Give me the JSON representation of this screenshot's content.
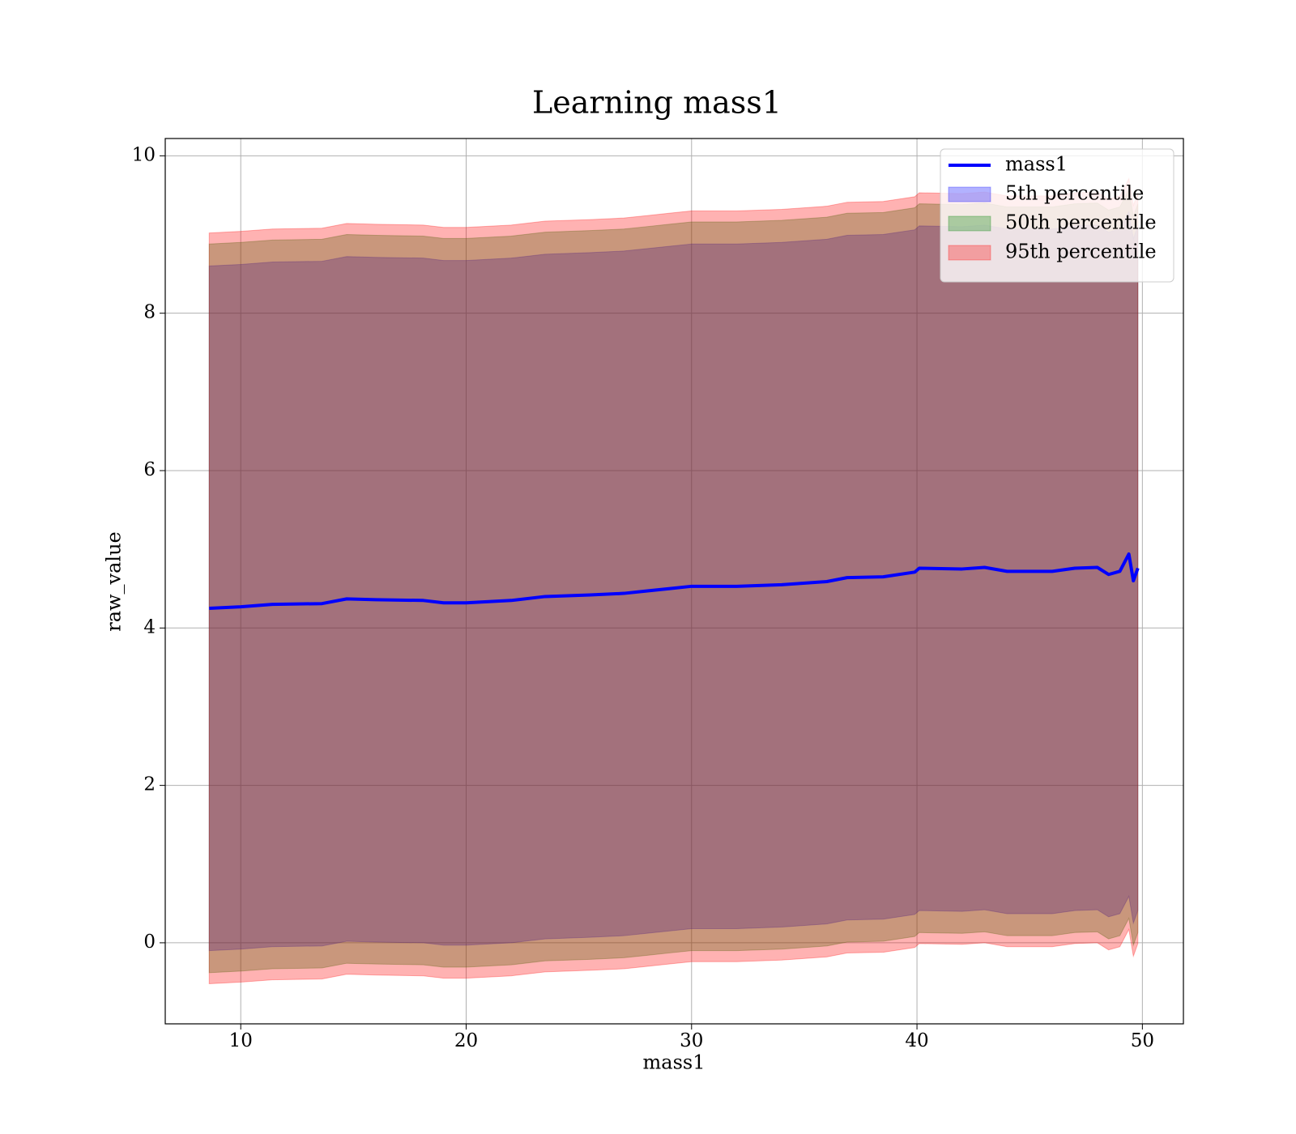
{
  "chart_data": {
    "type": "line",
    "title": "Learning mass1",
    "x_label": "mass1",
    "y_label": "raw_value",
    "x": [
      8.6,
      10,
      11.4,
      13.6,
      14.7,
      16,
      18.1,
      19,
      20,
      22,
      23.5,
      25.5,
      27,
      28,
      29,
      30,
      32,
      34,
      36,
      36.9,
      38.5,
      39.9,
      40.1,
      42,
      43,
      44,
      46,
      47,
      48,
      48.5,
      49,
      49.4,
      49.6,
      49.8
    ],
    "series": [
      {
        "name": "mass1",
        "color": "#0000ff",
        "values": [
          4.25,
          4.27,
          4.3,
          4.31,
          4.37,
          4.36,
          4.35,
          4.32,
          4.32,
          4.35,
          4.4,
          4.42,
          4.44,
          4.47,
          4.5,
          4.53,
          4.53,
          4.55,
          4.59,
          4.64,
          4.65,
          4.71,
          4.76,
          4.75,
          4.77,
          4.72,
          4.72,
          4.76,
          4.77,
          4.68,
          4.72,
          4.94,
          4.6,
          4.76
        ]
      }
    ],
    "bands": [
      {
        "name": "5th percentile",
        "color": "#0000ff",
        "lower": [
          -0.1,
          -0.08,
          -0.05,
          -0.04,
          0.02,
          0.01,
          0.0,
          -0.03,
          -0.03,
          0.0,
          0.05,
          0.07,
          0.09,
          0.12,
          0.15,
          0.18,
          0.18,
          0.2,
          0.24,
          0.29,
          0.3,
          0.36,
          0.41,
          0.4,
          0.42,
          0.37,
          0.37,
          0.41,
          0.42,
          0.33,
          0.37,
          0.59,
          0.25,
          0.41
        ],
        "upper": [
          8.6,
          8.62,
          8.65,
          8.66,
          8.72,
          8.71,
          8.7,
          8.67,
          8.67,
          8.7,
          8.75,
          8.77,
          8.79,
          8.82,
          8.85,
          8.88,
          8.88,
          8.9,
          8.94,
          8.99,
          9.0,
          9.06,
          9.11,
          9.1,
          9.12,
          9.07,
          9.07,
          9.11,
          9.12,
          9.03,
          9.07,
          9.29,
          8.95,
          9.11
        ]
      },
      {
        "name": "50th percentile",
        "color": "#008000",
        "lower": [
          -0.38,
          -0.36,
          -0.33,
          -0.32,
          -0.26,
          -0.27,
          -0.28,
          -0.31,
          -0.31,
          -0.28,
          -0.23,
          -0.21,
          -0.19,
          -0.16,
          -0.13,
          -0.1,
          -0.1,
          -0.08,
          -0.04,
          0.01,
          0.02,
          0.08,
          0.13,
          0.12,
          0.14,
          0.09,
          0.09,
          0.13,
          0.14,
          0.05,
          0.09,
          0.31,
          -0.03,
          0.13
        ],
        "upper": [
          8.88,
          8.9,
          8.93,
          8.94,
          9.0,
          8.99,
          8.98,
          8.95,
          8.95,
          8.98,
          9.03,
          9.05,
          9.07,
          9.1,
          9.13,
          9.16,
          9.16,
          9.18,
          9.22,
          9.27,
          9.28,
          9.34,
          9.39,
          9.38,
          9.4,
          9.35,
          9.35,
          9.39,
          9.4,
          9.31,
          9.35,
          9.57,
          9.23,
          9.39
        ]
      },
      {
        "name": "95th percentile",
        "color": "#ff0000",
        "lower": [
          -0.52,
          -0.5,
          -0.47,
          -0.46,
          -0.4,
          -0.41,
          -0.42,
          -0.45,
          -0.45,
          -0.42,
          -0.37,
          -0.35,
          -0.33,
          -0.3,
          -0.27,
          -0.24,
          -0.24,
          -0.22,
          -0.18,
          -0.13,
          -0.12,
          -0.06,
          -0.01,
          -0.02,
          0.0,
          -0.05,
          -0.05,
          -0.01,
          0.0,
          -0.09,
          -0.05,
          0.17,
          -0.17,
          -0.01
        ],
        "upper": [
          9.02,
          9.04,
          9.07,
          9.08,
          9.14,
          9.13,
          9.12,
          9.09,
          9.09,
          9.12,
          9.17,
          9.19,
          9.21,
          9.24,
          9.27,
          9.3,
          9.3,
          9.32,
          9.36,
          9.41,
          9.42,
          9.48,
          9.53,
          9.52,
          9.54,
          9.49,
          9.49,
          9.53,
          9.54,
          9.45,
          9.49,
          9.71,
          9.37,
          9.53
        ]
      }
    ],
    "band_opacity": 0.3,
    "xlim": [
      6.65,
      51.82
    ],
    "xticks": [
      10,
      20,
      30,
      40,
      50
    ],
    "ylim": [
      -1.03,
      10.22
    ],
    "yticks": [
      0,
      2,
      4,
      6,
      8,
      10
    ],
    "grid": true,
    "legend": "upper right"
  }
}
